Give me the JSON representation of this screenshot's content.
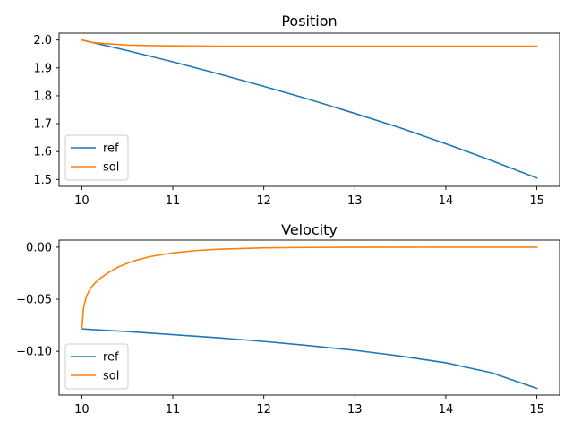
{
  "chart_data": [
    {
      "type": "line",
      "title": "Position",
      "xlim": [
        9.75,
        15.25
      ],
      "ylim": [
        1.4753,
        2.0247
      ],
      "x_ticks": [
        10,
        11,
        12,
        13,
        14,
        15
      ],
      "y_ticks": [
        1.5,
        1.6,
        1.7,
        1.8,
        1.9,
        2.0
      ],
      "y_tick_labels": [
        "1.5",
        "1.6",
        "1.7",
        "1.8",
        "1.9",
        "2.0"
      ],
      "legend": {
        "placement": "lower-left",
        "entries": [
          "ref",
          "sol"
        ]
      },
      "grid": false,
      "series": [
        {
          "name": "ref",
          "color": "#1f77b4",
          "x": [
            10,
            10.5,
            11,
            11.5,
            12,
            12.5,
            13,
            13.5,
            14,
            14.5,
            15
          ],
          "y": [
            2.0,
            1.962,
            1.922,
            1.879,
            1.834,
            1.787,
            1.737,
            1.685,
            1.628,
            1.568,
            1.505
          ]
        },
        {
          "name": "sol",
          "color": "#ff7f0e",
          "x": [
            10,
            10.1,
            10.25,
            10.5,
            10.75,
            11,
            11.5,
            12,
            13,
            14,
            15
          ],
          "y": [
            2.0,
            1.992,
            1.987,
            1.982,
            1.98,
            1.979,
            1.978,
            1.978,
            1.978,
            1.978,
            1.978
          ]
        }
      ]
    },
    {
      "type": "line",
      "title": "Velocity",
      "xlim": [
        9.75,
        15.25
      ],
      "ylim": [
        -0.142,
        0.0068
      ],
      "x_ticks": [
        10,
        11,
        12,
        13,
        14,
        15
      ],
      "y_ticks": [
        0.0,
        -0.05,
        -0.1
      ],
      "y_tick_labels": [
        "0.00",
        "−0.05",
        "−0.10"
      ],
      "legend": {
        "placement": "lower-left",
        "entries": [
          "ref",
          "sol"
        ]
      },
      "grid": false,
      "series": [
        {
          "name": "ref",
          "color": "#1f77b4",
          "x": [
            10,
            10.5,
            11,
            11.5,
            12,
            12.5,
            13,
            13.5,
            14,
            14.5,
            15
          ],
          "y": [
            -0.0785,
            -0.081,
            -0.084,
            -0.087,
            -0.0905,
            -0.0945,
            -0.099,
            -0.1045,
            -0.111,
            -0.1205,
            -0.1355
          ]
        },
        {
          "name": "sol",
          "color": "#ff7f0e",
          "x": [
            10,
            10.02,
            10.05,
            10.1,
            10.15,
            10.2,
            10.3,
            10.4,
            10.5,
            10.6,
            10.75,
            11,
            11.25,
            11.5,
            12,
            12.5,
            13,
            14,
            15
          ],
          "y": [
            -0.0785,
            -0.058,
            -0.047,
            -0.039,
            -0.034,
            -0.03,
            -0.024,
            -0.019,
            -0.0155,
            -0.0125,
            -0.009,
            -0.0055,
            -0.0033,
            -0.002,
            -0.0007,
            -0.0003,
            -0.0001,
            0.0,
            0.0
          ]
        }
      ]
    }
  ]
}
